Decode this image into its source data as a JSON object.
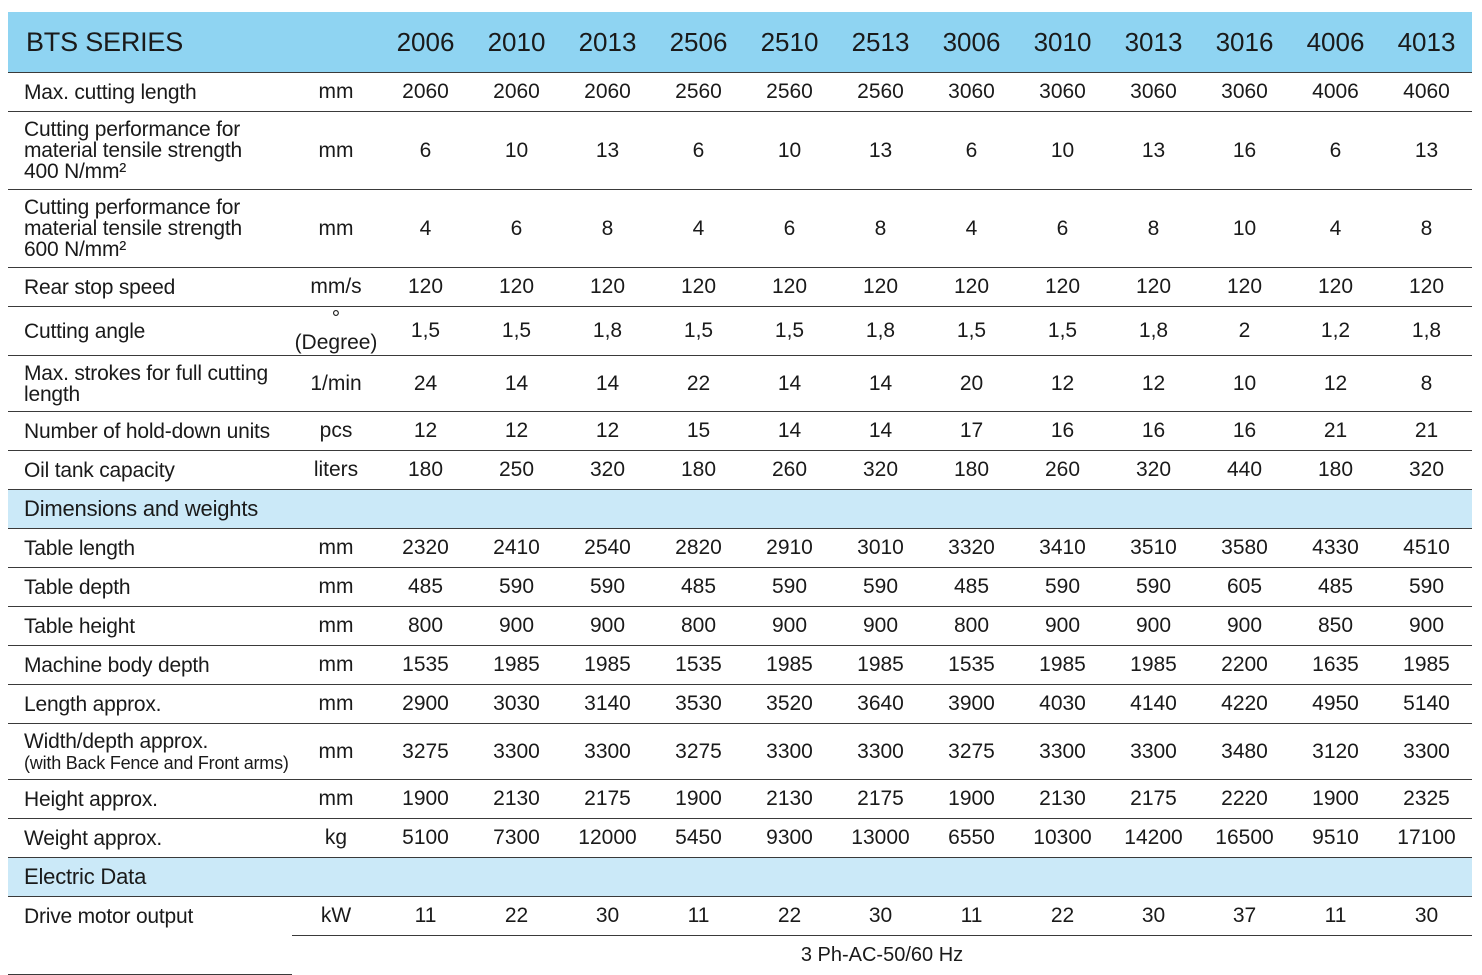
{
  "header": {
    "series_label": "BTS SERIES",
    "models": [
      "2006",
      "2010",
      "2013",
      "2506",
      "2510",
      "2513",
      "3006",
      "3010",
      "3013",
      "3016",
      "4006",
      "4013"
    ]
  },
  "specs": [
    {
      "label": [
        "Max. cutting length"
      ],
      "unit": "mm",
      "values": [
        "2060",
        "2060",
        "2060",
        "2560",
        "2560",
        "2560",
        "3060",
        "3060",
        "3060",
        "3060",
        "4006",
        "4060"
      ]
    },
    {
      "label": [
        "Cutting performance for",
        "material tensile strength",
        "400 N/mm²"
      ],
      "unit": "mm",
      "values": [
        "6",
        "10",
        "13",
        "6",
        "10",
        "13",
        "6",
        "10",
        "13",
        "16",
        "6",
        "13"
      ]
    },
    {
      "label": [
        "Cutting performance for",
        "material tensile strength",
        "600 N/mm²"
      ],
      "unit": "mm",
      "values": [
        "4",
        "6",
        "8",
        "4",
        "6",
        "8",
        "4",
        "6",
        "8",
        "10",
        "4",
        "8"
      ]
    },
    {
      "label": [
        "Rear stop speed"
      ],
      "unit": "mm/s",
      "values": [
        "120",
        "120",
        "120",
        "120",
        "120",
        "120",
        "120",
        "120",
        "120",
        "120",
        "120",
        "120"
      ]
    },
    {
      "label": [
        "Cutting angle"
      ],
      "unit": "°(Degree)",
      "values": [
        "1,5",
        "1,5",
        "1,8",
        "1,5",
        "1,5",
        "1,8",
        "1,5",
        "1,5",
        "1,8",
        "2",
        "1,2",
        "1,8"
      ]
    },
    {
      "label": [
        "Max. strokes for full cutting",
        "length"
      ],
      "unit": "1/min",
      "values": [
        "24",
        "14",
        "14",
        "22",
        "14",
        "14",
        "20",
        "12",
        "12",
        "10",
        "12",
        "8"
      ]
    },
    {
      "label": [
        "Number of hold-down units"
      ],
      "unit": "pcs",
      "values": [
        "12",
        "12",
        "12",
        "15",
        "14",
        "14",
        "17",
        "16",
        "16",
        "16",
        "21",
        "21"
      ]
    },
    {
      "label": [
        "Oil tank capacity"
      ],
      "unit": "liters",
      "values": [
        "180",
        "250",
        "320",
        "180",
        "260",
        "320",
        "180",
        "260",
        "320",
        "440",
        "180",
        "320"
      ]
    }
  ],
  "dimensions": {
    "title": "Dimensions and weights",
    "rows": [
      {
        "label": [
          "Table length"
        ],
        "unit": "mm",
        "values": [
          "2320",
          "2410",
          "2540",
          "2820",
          "2910",
          "3010",
          "3320",
          "3410",
          "3510",
          "3580",
          "4330",
          "4510"
        ]
      },
      {
        "label": [
          "Table depth"
        ],
        "unit": "mm",
        "values": [
          "485",
          "590",
          "590",
          "485",
          "590",
          "590",
          "485",
          "590",
          "590",
          "605",
          "485",
          "590"
        ]
      },
      {
        "label": [
          "Table height"
        ],
        "unit": "mm",
        "values": [
          "800",
          "900",
          "900",
          "800",
          "900",
          "900",
          "800",
          "900",
          "900",
          "900",
          "850",
          "900"
        ]
      },
      {
        "label": [
          "Machine body depth"
        ],
        "unit": "mm",
        "values": [
          "1535",
          "1985",
          "1985",
          "1535",
          "1985",
          "1985",
          "1535",
          "1985",
          "1985",
          "2200",
          "1635",
          "1985"
        ]
      },
      {
        "label": [
          "Length approx."
        ],
        "unit": "mm",
        "values": [
          "2900",
          "3030",
          "3140",
          "3530",
          "3520",
          "3640",
          "3900",
          "4030",
          "4140",
          "4220",
          "4950",
          "5140"
        ]
      },
      {
        "label": [
          "Width/depth approx.",
          "(with Back Fence and Front arms)"
        ],
        "unit": "mm",
        "values": [
          "3275",
          "3300",
          "3300",
          "3275",
          "3300",
          "3300",
          "3275",
          "3300",
          "3300",
          "3480",
          "3120",
          "3300"
        ]
      },
      {
        "label": [
          "Height approx."
        ],
        "unit": "mm",
        "values": [
          "1900",
          "2130",
          "2175",
          "1900",
          "2130",
          "2175",
          "1900",
          "2130",
          "2175",
          "2220",
          "1900",
          "2325"
        ]
      },
      {
        "label": [
          "Weight approx."
        ],
        "unit": "kg",
        "values": [
          "5100",
          "7300",
          "12000",
          "5450",
          "9300",
          "13000",
          "6550",
          "10300",
          "14200",
          "16500",
          "9510",
          "17100"
        ]
      }
    ]
  },
  "electric": {
    "title": "Electric Data",
    "rows": [
      {
        "label": [
          "Drive motor output"
        ],
        "unit": "kW",
        "values": [
          "11",
          "22",
          "30",
          "11",
          "22",
          "30",
          "11",
          "22",
          "30",
          "37",
          "11",
          "30"
        ]
      }
    ],
    "supply": "3 Ph-AC-50/60 Hz"
  }
}
